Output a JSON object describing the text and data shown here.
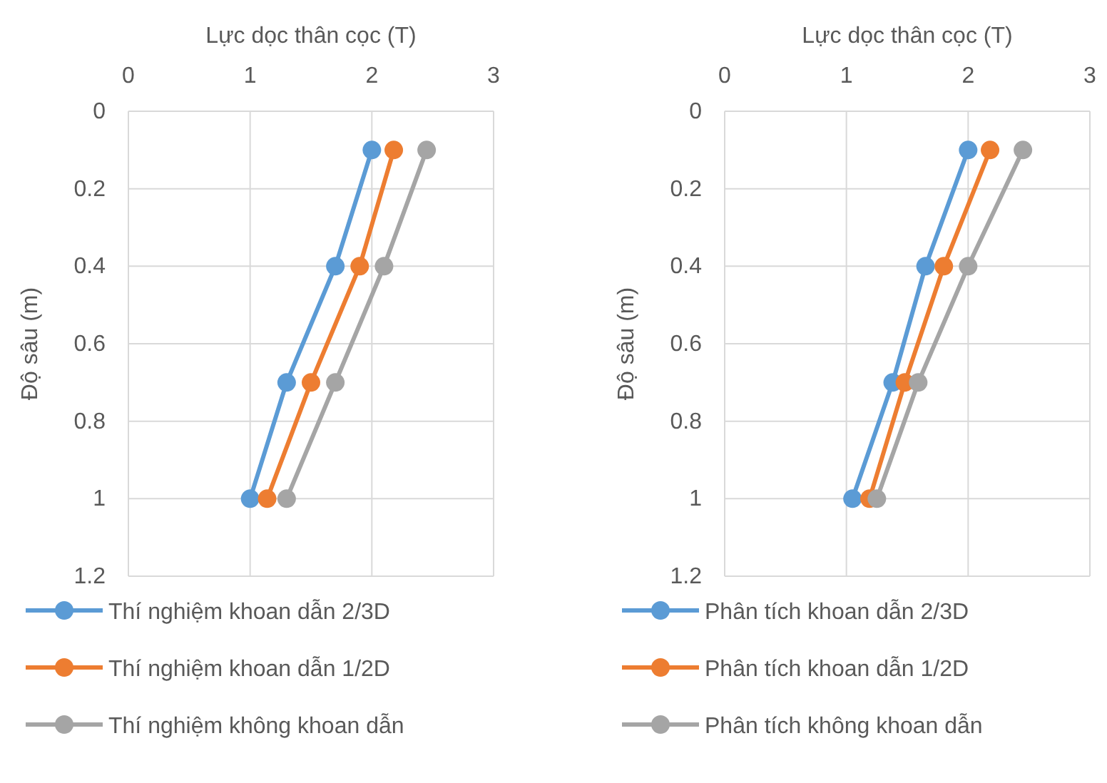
{
  "chart_data": [
    {
      "type": "line",
      "xlabel": "Lực dọc thân cọc (T)",
      "ylabel": "Độ sâu (m)",
      "xlim": [
        0,
        3
      ],
      "xticks": [
        0,
        1,
        2,
        3
      ],
      "ylim": [
        1.2,
        0
      ],
      "yticks": [
        0,
        0.2,
        0.4,
        0.6,
        0.8,
        1,
        1.2
      ],
      "grid": true,
      "legend": "bottom",
      "marker": "circle",
      "line_style": "solid",
      "series": [
        {
          "name": "Thí nghiệm khoan dẫn 2/3D",
          "color": "#5b9bd5",
          "x": [
            2.0,
            1.7,
            1.3,
            1.0
          ],
          "values": [
            0.1,
            0.4,
            0.7,
            1
          ]
        },
        {
          "name": "Thí nghiệm khoan dẫn 1/2D",
          "color": "#ed7d31",
          "x": [
            2.18,
            1.9,
            1.5,
            1.14
          ],
          "values": [
            0.1,
            0.4,
            0.7,
            1
          ]
        },
        {
          "name": "Thí nghiệm không khoan dẫn",
          "color": "#a5a5a5",
          "x": [
            2.45,
            2.1,
            1.7,
            1.3
          ],
          "values": [
            0.1,
            0.4,
            0.7,
            1
          ]
        }
      ]
    },
    {
      "type": "line",
      "xlabel": "Lực dọc thân cọc (T)",
      "ylabel": "Độ sâu (m)",
      "xlim": [
        0,
        3
      ],
      "xticks": [
        0,
        1,
        2,
        3
      ],
      "ylim": [
        1.2,
        0
      ],
      "yticks": [
        0,
        0.2,
        0.4,
        0.6,
        0.8,
        1,
        1.2
      ],
      "grid": true,
      "legend": "bottom",
      "marker": "circle",
      "line_style": "solid",
      "series": [
        {
          "name": "Phân tích khoan dẫn 2/3D",
          "color": "#5b9bd5",
          "x": [
            2.0,
            1.65,
            1.38,
            1.05
          ],
          "values": [
            0.1,
            0.4,
            0.7,
            1
          ]
        },
        {
          "name": "Phân tích khoan dẫn 1/2D",
          "color": "#ed7d31",
          "x": [
            2.18,
            1.8,
            1.48,
            1.19
          ],
          "values": [
            0.1,
            0.4,
            0.7,
            1
          ]
        },
        {
          "name": "Phân tích không khoan dẫn",
          "color": "#a5a5a5",
          "x": [
            2.45,
            2.0,
            1.59,
            1.25
          ],
          "values": [
            0.1,
            0.4,
            0.7,
            1
          ]
        }
      ]
    }
  ]
}
